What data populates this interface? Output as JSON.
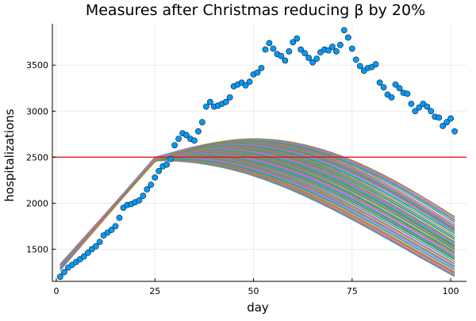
{
  "chart_data": {
    "type": "line",
    "title": "Measures after Christmas reducing β by 20%",
    "xlabel": "day",
    "ylabel": "hospitalizations",
    "xlim": [
      -1,
      104
    ],
    "ylim": [
      1150,
      3950
    ],
    "xticks": [
      0,
      25,
      50,
      75,
      100
    ],
    "yticks": [
      1500,
      2000,
      2500,
      3000,
      3500
    ],
    "grid": true,
    "legend": "none",
    "threshold_line": {
      "y": 2500,
      "color": "#e01a1a"
    },
    "observed": {
      "marker": "circle",
      "color": "#009af9",
      "stroke": "#1a1a1a",
      "x": [
        1,
        2,
        3,
        4,
        5,
        6,
        7,
        8,
        9,
        10,
        11,
        12,
        13,
        14,
        15,
        16,
        17,
        18,
        19,
        20,
        21,
        22,
        23,
        24,
        25,
        26,
        27,
        28,
        29,
        30,
        31,
        32,
        33,
        34,
        35,
        36,
        37,
        38,
        39,
        40,
        41,
        42,
        43,
        44,
        45,
        46,
        47,
        48,
        49,
        50,
        51,
        52,
        53,
        54,
        55,
        56,
        57,
        58,
        59,
        60,
        61,
        62,
        63,
        64,
        65,
        66,
        67,
        68,
        69,
        70,
        71,
        72,
        73,
        74,
        75,
        76,
        77,
        78,
        79,
        80,
        81,
        82,
        83,
        84,
        85,
        86,
        87,
        88,
        89,
        90,
        91,
        92,
        93,
        94,
        95,
        96,
        97,
        98,
        99,
        100,
        101
      ],
      "y": [
        1200,
        1250,
        1300,
        1330,
        1360,
        1390,
        1420,
        1460,
        1500,
        1530,
        1580,
        1650,
        1680,
        1710,
        1750,
        1840,
        1950,
        1980,
        1990,
        2010,
        2030,
        2080,
        2150,
        2200,
        2280,
        2350,
        2400,
        2420,
        2480,
        2630,
        2700,
        2760,
        2740,
        2700,
        2680,
        2780,
        2880,
        3050,
        3100,
        3050,
        3060,
        3080,
        3100,
        3150,
        3270,
        3290,
        3310,
        3280,
        3320,
        3400,
        3420,
        3470,
        3670,
        3740,
        3680,
        3620,
        3600,
        3550,
        3650,
        3750,
        3790,
        3670,
        3630,
        3580,
        3530,
        3570,
        3640,
        3670,
        3660,
        3700,
        3650,
        3720,
        3880,
        3800,
        3680,
        3560,
        3490,
        3440,
        3470,
        3480,
        3510,
        3310,
        3260,
        3180,
        3150,
        3290,
        3250,
        3200,
        3190,
        3080,
        3000,
        3040,
        3080,
        3050,
        3000,
        2940,
        2930,
        2840,
        2880,
        2920,
        2780
      ],
      "note": "values estimated from plot"
    },
    "projection": {
      "description": "ensemble of simulated trajectories",
      "x_start": 1,
      "x_end": 101,
      "peak_day_range": [
        25,
        50
      ],
      "y_start_range": [
        1270,
        1340
      ],
      "y_day25_range": [
        2450,
        2500
      ],
      "y_peak_range": [
        2460,
        2700
      ],
      "y_end_range": [
        1200,
        1850
      ],
      "colors": [
        "#009af9",
        "#e26f46",
        "#3da44d",
        "#c271d2",
        "#ac8d18",
        "#00a9ad",
        "#ed5e93",
        "#c68225",
        "#00a98d",
        "#8e971e",
        "#00a9cd",
        "#9b7fe8",
        "#618df6",
        "#f05f73",
        "#dd64b5",
        "#6b9d28"
      ]
    }
  }
}
